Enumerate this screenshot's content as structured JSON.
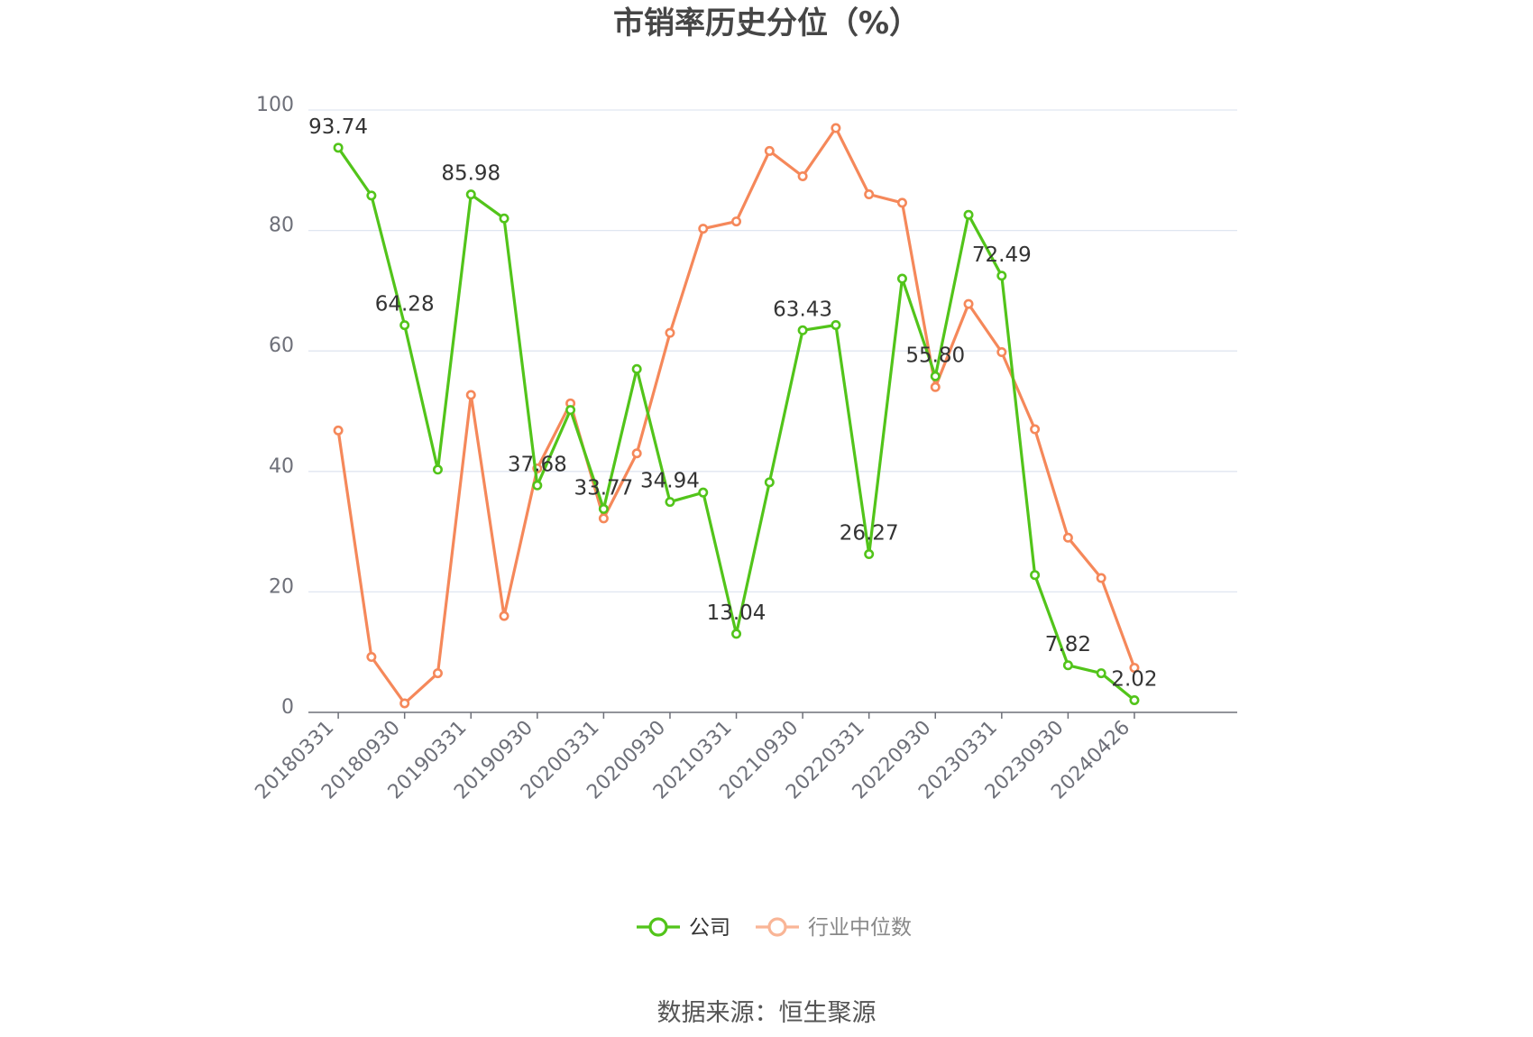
{
  "chart_data": {
    "type": "line",
    "title": "市销率历史分位（%）",
    "source": "数据来源：恒生聚源",
    "ylim": [
      0,
      100
    ],
    "y_ticks": [
      "0",
      "20",
      "40",
      "60",
      "80",
      "100"
    ],
    "x_tick_labels": [
      "20180331",
      "20180930",
      "20190331",
      "20190930",
      "20200331",
      "20200930",
      "20210331",
      "20210930",
      "20220331",
      "20220930",
      "20230331",
      "20230930",
      "20240426"
    ],
    "x": [
      "20180331",
      "20180630",
      "20180930",
      "20181231",
      "20190331",
      "20190630",
      "20190930",
      "20191231",
      "20200331",
      "20200630",
      "20200930",
      "20201231",
      "20210331",
      "20210630",
      "20210930",
      "20211231",
      "20220331",
      "20220630",
      "20220930",
      "20221231",
      "20230331",
      "20230630",
      "20230930",
      "20231231",
      "20240426"
    ],
    "grid": true,
    "legend_position": "bottom-center",
    "series": [
      {
        "name": "公司",
        "color": "#52c41a",
        "values": [
          93.74,
          85.8,
          64.28,
          40.3,
          85.98,
          82.0,
          37.68,
          50.2,
          33.77,
          57.0,
          34.94,
          36.5,
          13.04,
          38.2,
          63.43,
          64.3,
          26.27,
          72.0,
          55.8,
          82.6,
          72.49,
          22.8,
          7.82,
          6.5,
          2.02
        ],
        "labels": [
          "93.74",
          "",
          "64.28",
          "",
          "85.98",
          "",
          "37.68",
          "",
          "33.77",
          "",
          "34.94",
          "",
          "13.04",
          "",
          "63.43",
          "",
          "26.27",
          "",
          "55.80",
          "",
          "72.49",
          "",
          "7.82",
          "",
          "2.02"
        ]
      },
      {
        "name": "行业中位数",
        "color": "#f5885a",
        "values": [
          46.8,
          9.2,
          1.5,
          6.5,
          52.7,
          16.0,
          40.5,
          51.3,
          32.2,
          43.0,
          63.0,
          80.3,
          81.5,
          93.2,
          89.0,
          97.0,
          86.0,
          84.6,
          54.0,
          67.8,
          59.8,
          47.0,
          29.0,
          22.3,
          7.4
        ]
      }
    ]
  },
  "legend_inactive_color": "#f9b596"
}
